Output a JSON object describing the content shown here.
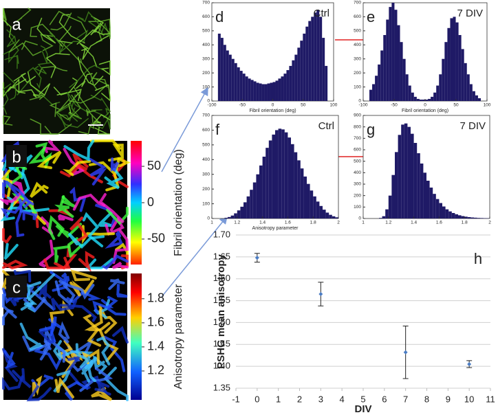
{
  "image_panels": [
    {
      "letter": "a"
    },
    {
      "letter": "b"
    },
    {
      "letter": "c"
    }
  ],
  "colorbars": [
    {
      "label": "Fibril orientation (deg)",
      "lim": [
        -85,
        85
      ],
      "ticks": [
        50,
        0,
        -50
      ]
    },
    {
      "label": "Anisotropy parameter",
      "lim": [
        0.96,
        2.01
      ],
      "ticks": [
        1.8,
        1.6,
        1.4,
        1.2
      ]
    }
  ],
  "chart_data": [
    {
      "type": "histogram",
      "letter": "d",
      "condition": "Ctrl",
      "xlabel": "Fibril orientation (deg)",
      "color": "#1f1a66",
      "bins": [
        -90,
        -85.5,
        -81,
        -76.5,
        -72,
        -67.5,
        -63,
        -58.5,
        -54,
        -49.5,
        -45,
        -40.5,
        -36,
        -31.5,
        -27,
        -22.5,
        -18,
        -13.5,
        -9,
        -4.5,
        0,
        4.5,
        9,
        13.5,
        18,
        22.5,
        27,
        31.5,
        36,
        40.5,
        45,
        49.5,
        54,
        58.5,
        63,
        67.5,
        72,
        76.5,
        81,
        85.5,
        90
      ],
      "counts": [
        480,
        450,
        400,
        360,
        330,
        300,
        270,
        240,
        215,
        195,
        175,
        160,
        150,
        140,
        130,
        125,
        120,
        120,
        125,
        130,
        135,
        145,
        160,
        175,
        195,
        220,
        250,
        290,
        330,
        380,
        430,
        480,
        530,
        570,
        600,
        630,
        650,
        600,
        450,
        250
      ],
      "xlim": [
        -100,
        100
      ],
      "ylim": [
        0,
        700
      ],
      "xticks": [
        -100,
        -50,
        0,
        50,
        100
      ],
      "yticks": [
        0,
        100,
        200,
        300,
        400,
        500,
        600,
        700
      ]
    },
    {
      "type": "histogram",
      "letter": "e",
      "condition": "7 DIV",
      "xlabel": "Fibril orientation (deg)",
      "color": "#1f1a66",
      "bins": [
        -90,
        -85.5,
        -81,
        -76.5,
        -72,
        -67.5,
        -63,
        -58.5,
        -54,
        -49.5,
        -45,
        -40.5,
        -36,
        -31.5,
        -27,
        -22.5,
        -18,
        -13.5,
        -9,
        -4.5,
        0,
        4.5,
        9,
        13.5,
        18,
        22.5,
        27,
        31.5,
        36,
        40.5,
        45,
        49.5,
        54,
        58.5,
        63,
        67.5,
        72,
        76.5,
        81,
        85.5,
        90
      ],
      "counts": [
        80,
        120,
        180,
        260,
        360,
        470,
        580,
        670,
        700,
        650,
        540,
        420,
        300,
        190,
        110,
        60,
        30,
        15,
        10,
        10,
        10,
        15,
        30,
        60,
        110,
        190,
        300,
        420,
        520,
        590,
        600,
        560,
        470,
        370,
        270,
        190,
        120,
        70,
        40,
        20
      ],
      "xlim": [
        -100,
        100
      ],
      "ylim": [
        0,
        700
      ],
      "xticks": [
        -100,
        -50,
        0,
        50,
        100
      ],
      "yticks": [
        0,
        100,
        200,
        300,
        400,
        500,
        600,
        700
      ]
    },
    {
      "type": "histogram",
      "letter": "f",
      "condition": "Ctrl",
      "xlabel": "Anisotropy parameter",
      "color": "#1f1a66",
      "bins": [
        1.1,
        1.125,
        1.15,
        1.175,
        1.2,
        1.225,
        1.25,
        1.275,
        1.3,
        1.325,
        1.35,
        1.375,
        1.4,
        1.425,
        1.45,
        1.475,
        1.5,
        1.525,
        1.55,
        1.575,
        1.6,
        1.625,
        1.65,
        1.675,
        1.7,
        1.725,
        1.75,
        1.775,
        1.8,
        1.825,
        1.85,
        1.875,
        1.9,
        1.925,
        1.95,
        1.975,
        2.0
      ],
      "counts": [
        5,
        10,
        20,
        35,
        55,
        80,
        110,
        150,
        195,
        245,
        300,
        360,
        420,
        480,
        530,
        570,
        600,
        610,
        605,
        585,
        550,
        505,
        450,
        395,
        340,
        285,
        235,
        190,
        150,
        115,
        85,
        60,
        40,
        25,
        15,
        8
      ],
      "xlim": [
        1,
        2
      ],
      "ylim": [
        0,
        700
      ],
      "xticks": [
        1,
        1.2,
        1.4,
        1.6,
        1.8,
        2
      ],
      "yticks": [
        0,
        100,
        200,
        300,
        400,
        500,
        600,
        700
      ]
    },
    {
      "type": "histogram",
      "letter": "g",
      "condition": "7 DIV",
      "color": "#1f1a66",
      "bins": [
        1.1,
        1.125,
        1.15,
        1.175,
        1.2,
        1.225,
        1.25,
        1.275,
        1.3,
        1.325,
        1.35,
        1.375,
        1.4,
        1.425,
        1.45,
        1.475,
        1.5,
        1.525,
        1.55,
        1.575,
        1.6,
        1.625,
        1.65,
        1.675,
        1.7,
        1.725,
        1.75,
        1.775,
        1.8,
        1.825,
        1.85,
        1.875,
        1.9,
        1.925,
        1.95,
        1.975,
        2.0
      ],
      "counts": [
        0,
        5,
        20,
        80,
        200,
        380,
        580,
        730,
        820,
        830,
        800,
        740,
        660,
        570,
        480,
        400,
        330,
        270,
        215,
        170,
        135,
        105,
        80,
        62,
        48,
        37,
        28,
        21,
        16,
        12,
        9,
        7,
        5,
        4,
        3,
        2
      ],
      "xlim": [
        1,
        2
      ],
      "ylim": [
        0,
        900
      ],
      "xticks": [
        1,
        1.2,
        1.4,
        1.6,
        1.8,
        2
      ],
      "yticks": [
        0,
        100,
        200,
        300,
        400,
        500,
        600,
        700,
        800,
        900
      ]
    },
    {
      "type": "scatter",
      "letter": "h",
      "xlabel": "DIV",
      "ylabel": "PSHG mean anisotropy",
      "color": "#4a7cc4",
      "grid": true,
      "x": [
        0,
        3,
        7,
        10
      ],
      "values": [
        1.648,
        1.565,
        1.432,
        1.405
      ],
      "errors": [
        0.01,
        0.027,
        0.06,
        0.008
      ],
      "xlim": [
        -1,
        11
      ],
      "ylim": [
        1.35,
        1.7
      ],
      "xticks": [
        -1,
        0,
        1,
        2,
        3,
        4,
        5,
        6,
        7,
        8,
        9,
        10,
        11
      ],
      "yticks": [
        {
          "value": 1.35,
          "label": "1.35"
        },
        {
          "value": 1.4,
          "label": "1.40"
        },
        {
          "value": 1.45,
          "label": "1.45"
        },
        {
          "value": 1.5,
          "label": "1.50"
        },
        {
          "value": 1.55,
          "label": "1.55"
        },
        {
          "value": 1.6,
          "label": "1.60"
        },
        {
          "value": 1.65,
          "label": "1.65"
        },
        {
          "value": 1.7,
          "label": "1.70"
        }
      ]
    }
  ]
}
